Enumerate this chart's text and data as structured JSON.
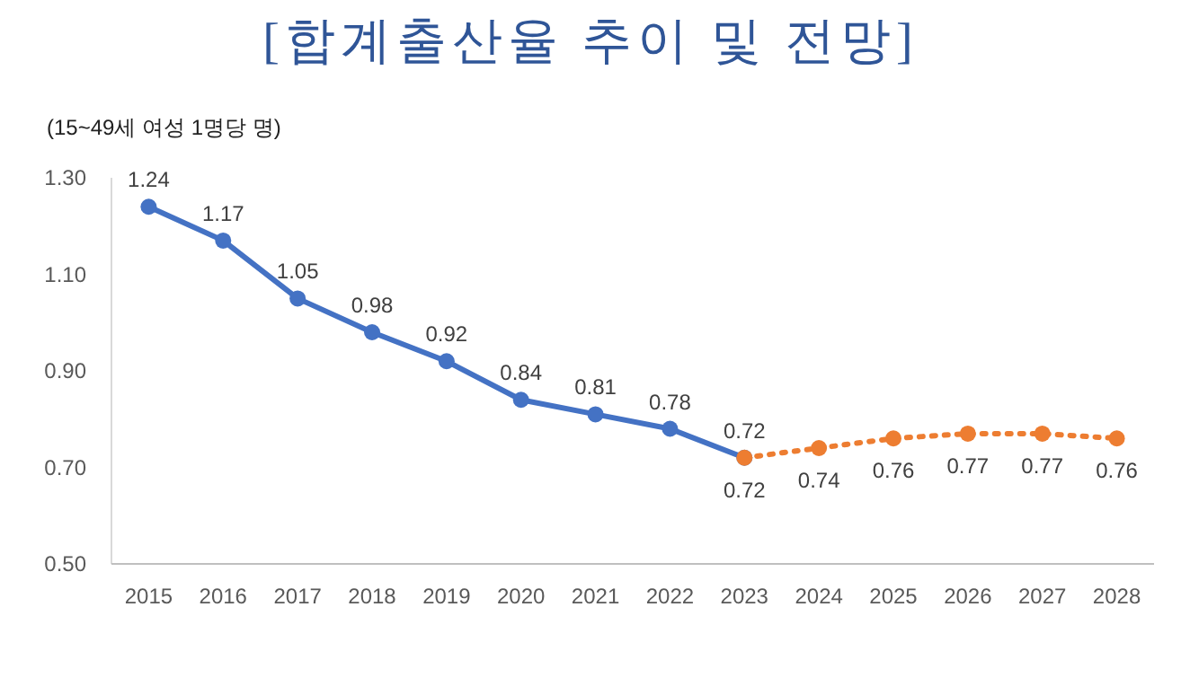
{
  "chart_data": {
    "type": "line",
    "title": "[합계출산율 추이 및 전망]",
    "ylabel": "(15~49세 여성 1명당 명)",
    "categories": [
      "2015",
      "2016",
      "2017",
      "2018",
      "2019",
      "2020",
      "2021",
      "2022",
      "2023",
      "2024",
      "2025",
      "2026",
      "2027",
      "2028"
    ],
    "series": [
      {
        "color": "#4472c4",
        "line_style": "solid",
        "values": [
          1.24,
          1.17,
          1.05,
          0.98,
          0.92,
          0.84,
          0.81,
          0.78,
          0.72,
          null,
          null,
          null,
          null,
          null
        ]
      },
      {
        "color": "#ed7d31",
        "line_style": "dotted",
        "values": [
          null,
          null,
          null,
          null,
          null,
          null,
          null,
          null,
          0.72,
          0.74,
          0.76,
          0.77,
          0.77,
          0.76
        ]
      }
    ],
    "ylim": [
      0.5,
      1.3
    ],
    "yticks": [
      {
        "value": 0.5,
        "label": "0.50"
      },
      {
        "value": 0.7,
        "label": "0.70"
      },
      {
        "value": 0.9,
        "label": "0.90"
      },
      {
        "value": 1.1,
        "label": "1.10"
      },
      {
        "value": 1.3,
        "label": "1.30"
      }
    ],
    "marker": "circle",
    "data_labels": true,
    "grid": false
  }
}
